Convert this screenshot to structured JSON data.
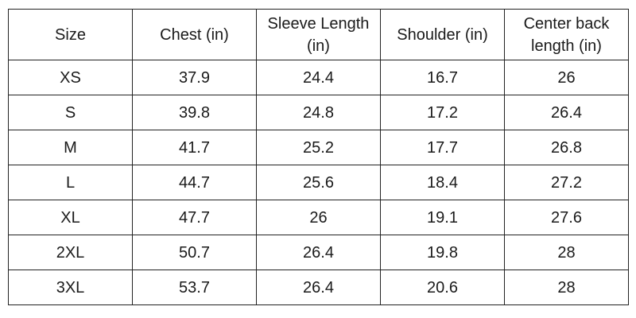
{
  "table": {
    "header": [
      "Size",
      "Chest (in)",
      "Sleeve Length (in)",
      "Shoulder (in)",
      "Center back length (in)"
    ],
    "rows": [
      [
        "XS",
        "37.9",
        "24.4",
        "16.7",
        "26"
      ],
      [
        "S",
        "39.8",
        "24.8",
        "17.2",
        "26.4"
      ],
      [
        "M",
        "41.7",
        "25.2",
        "17.7",
        "26.8"
      ],
      [
        "L",
        "44.7",
        "25.6",
        "18.4",
        "27.2"
      ],
      [
        "XL",
        "47.7",
        "26",
        "19.1",
        "27.6"
      ],
      [
        "2XL",
        "50.7",
        "26.4",
        "19.8",
        "28"
      ],
      [
        "3XL",
        "53.7",
        "26.4",
        "20.6",
        "28"
      ]
    ]
  }
}
